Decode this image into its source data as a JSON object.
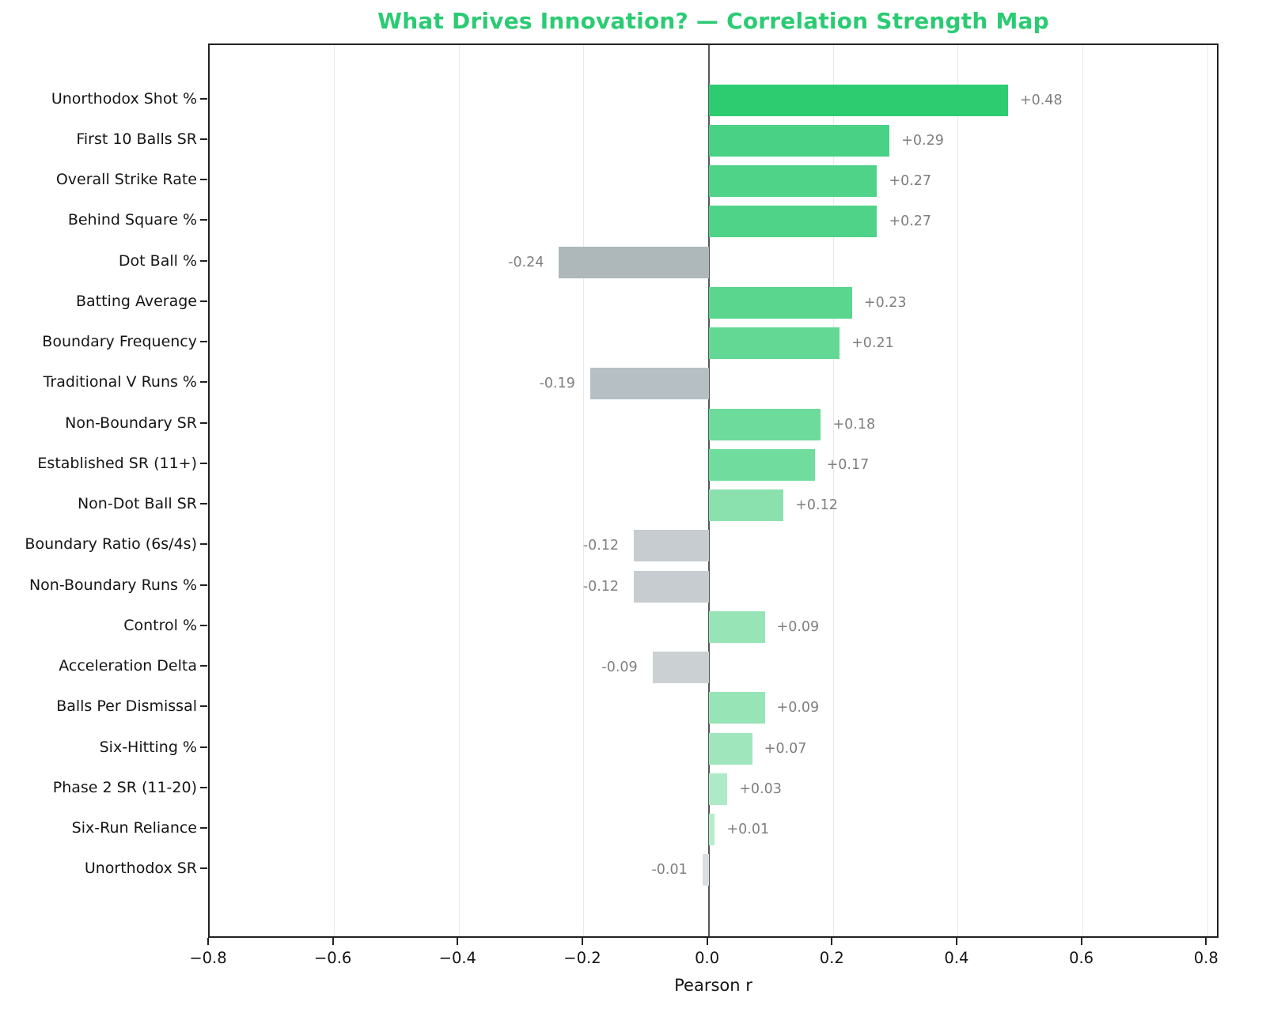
{
  "header": {
    "title": "What Drives Innovation? — Correlation Strength Map",
    "title_color": "#2bcb73"
  },
  "chart_data": {
    "type": "bar",
    "orientation": "horizontal",
    "title": "What Drives Innovation? — Correlation Strength Map",
    "xlabel": "Pearson r",
    "ylabel": "",
    "xlim": [
      -0.8,
      0.82
    ],
    "grid": "vertical-only",
    "legend": "none",
    "x_ticks": [
      {
        "value": -0.8,
        "label": "−0.8"
      },
      {
        "value": -0.6,
        "label": "−0.6"
      },
      {
        "value": -0.4,
        "label": "−0.4"
      },
      {
        "value": -0.2,
        "label": "−0.2"
      },
      {
        "value": 0.0,
        "label": "0.0"
      },
      {
        "value": 0.2,
        "label": "0.2"
      },
      {
        "value": 0.4,
        "label": "0.4"
      },
      {
        "value": 0.6,
        "label": "0.6"
      },
      {
        "value": 0.8,
        "label": "0.8"
      }
    ],
    "categories": [
      {
        "label": "Unorthodox Shot %",
        "r": 0.48,
        "display": "+0.48",
        "color": "#2ecc71"
      },
      {
        "label": "First 10 Balls SR",
        "r": 0.29,
        "display": "+0.29",
        "color": "#49d185"
      },
      {
        "label": "Overall Strike Rate",
        "r": 0.27,
        "display": "+0.27",
        "color": "#4ed389"
      },
      {
        "label": "Behind Square %",
        "r": 0.27,
        "display": "+0.27",
        "color": "#4ed389"
      },
      {
        "label": "Dot Ball %",
        "r": -0.24,
        "display": "-0.24",
        "color": "#aeb8bb"
      },
      {
        "label": "Batting Average",
        "r": 0.23,
        "display": "+0.23",
        "color": "#5ad68f"
      },
      {
        "label": "Boundary Frequency",
        "r": 0.21,
        "display": "+0.21",
        "color": "#62d894"
      },
      {
        "label": "Traditional V Runs %",
        "r": -0.19,
        "display": "-0.19",
        "color": "#b6bfc3"
      },
      {
        "label": "Non-Boundary SR",
        "r": 0.18,
        "display": "+0.18",
        "color": "#6cdb9b"
      },
      {
        "label": "Established SR (11+)",
        "r": 0.17,
        "display": "+0.17",
        "color": "#70dc9e"
      },
      {
        "label": "Non-Dot Ball SR",
        "r": 0.12,
        "display": "+0.12",
        "color": "#8ae1ae"
      },
      {
        "label": "Boundary Ratio (6s/4s)",
        "r": -0.12,
        "display": "-0.12",
        "color": "#c6cccf"
      },
      {
        "label": "Non-Boundary Runs %",
        "r": -0.12,
        "display": "-0.12",
        "color": "#c6cccf"
      },
      {
        "label": "Control %",
        "r": 0.09,
        "display": "+0.09",
        "color": "#97e4b7"
      },
      {
        "label": "Acceleration Delta",
        "r": -0.09,
        "display": "-0.09",
        "color": "#cbd0d3"
      },
      {
        "label": "Balls Per Dismissal",
        "r": 0.09,
        "display": "+0.09",
        "color": "#97e4b7"
      },
      {
        "label": "Six-Hitting %",
        "r": 0.07,
        "display": "+0.07",
        "color": "#a0e6bd"
      },
      {
        "label": "Phase 2 SR (11-20)",
        "r": 0.03,
        "display": "+0.03",
        "color": "#aeeac7"
      },
      {
        "label": "Six-Run Reliance",
        "r": 0.01,
        "display": "+0.01",
        "color": "#b5ecca"
      },
      {
        "label": "Unorthodox SR",
        "r": -0.01,
        "display": "-0.01",
        "color": "#dcdfe1"
      }
    ],
    "colors": {
      "positive_strong": "#2ecc71",
      "negative_gray": "#aeb8bb",
      "value_label": "#7f7f7f",
      "axis_text": "#151515",
      "gridline": "#e9e9e9",
      "zero_line": "#54585a",
      "spine": "#222222",
      "title": "#2bcb73"
    }
  }
}
